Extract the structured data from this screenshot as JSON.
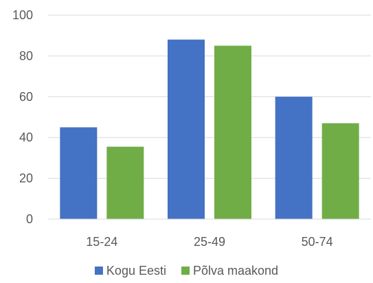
{
  "chart_data": {
    "type": "bar",
    "title": "",
    "xlabel": "",
    "ylabel": "",
    "categories": [
      "15-24",
      "25-49",
      "50-74"
    ],
    "series": [
      {
        "name": "Kogu Eesti",
        "values": [
          45,
          88,
          60
        ],
        "color": "#4472C4"
      },
      {
        "name": "Põlva maakond",
        "values": [
          35.5,
          85,
          47
        ],
        "color": "#70AD47"
      }
    ],
    "ylim": [
      0,
      100
    ],
    "yticks": [
      "0",
      "20",
      "40",
      "60",
      "80",
      "100"
    ],
    "grid": true,
    "gridColor": "#D9D9D9",
    "legend": {
      "position": "bottom"
    }
  }
}
